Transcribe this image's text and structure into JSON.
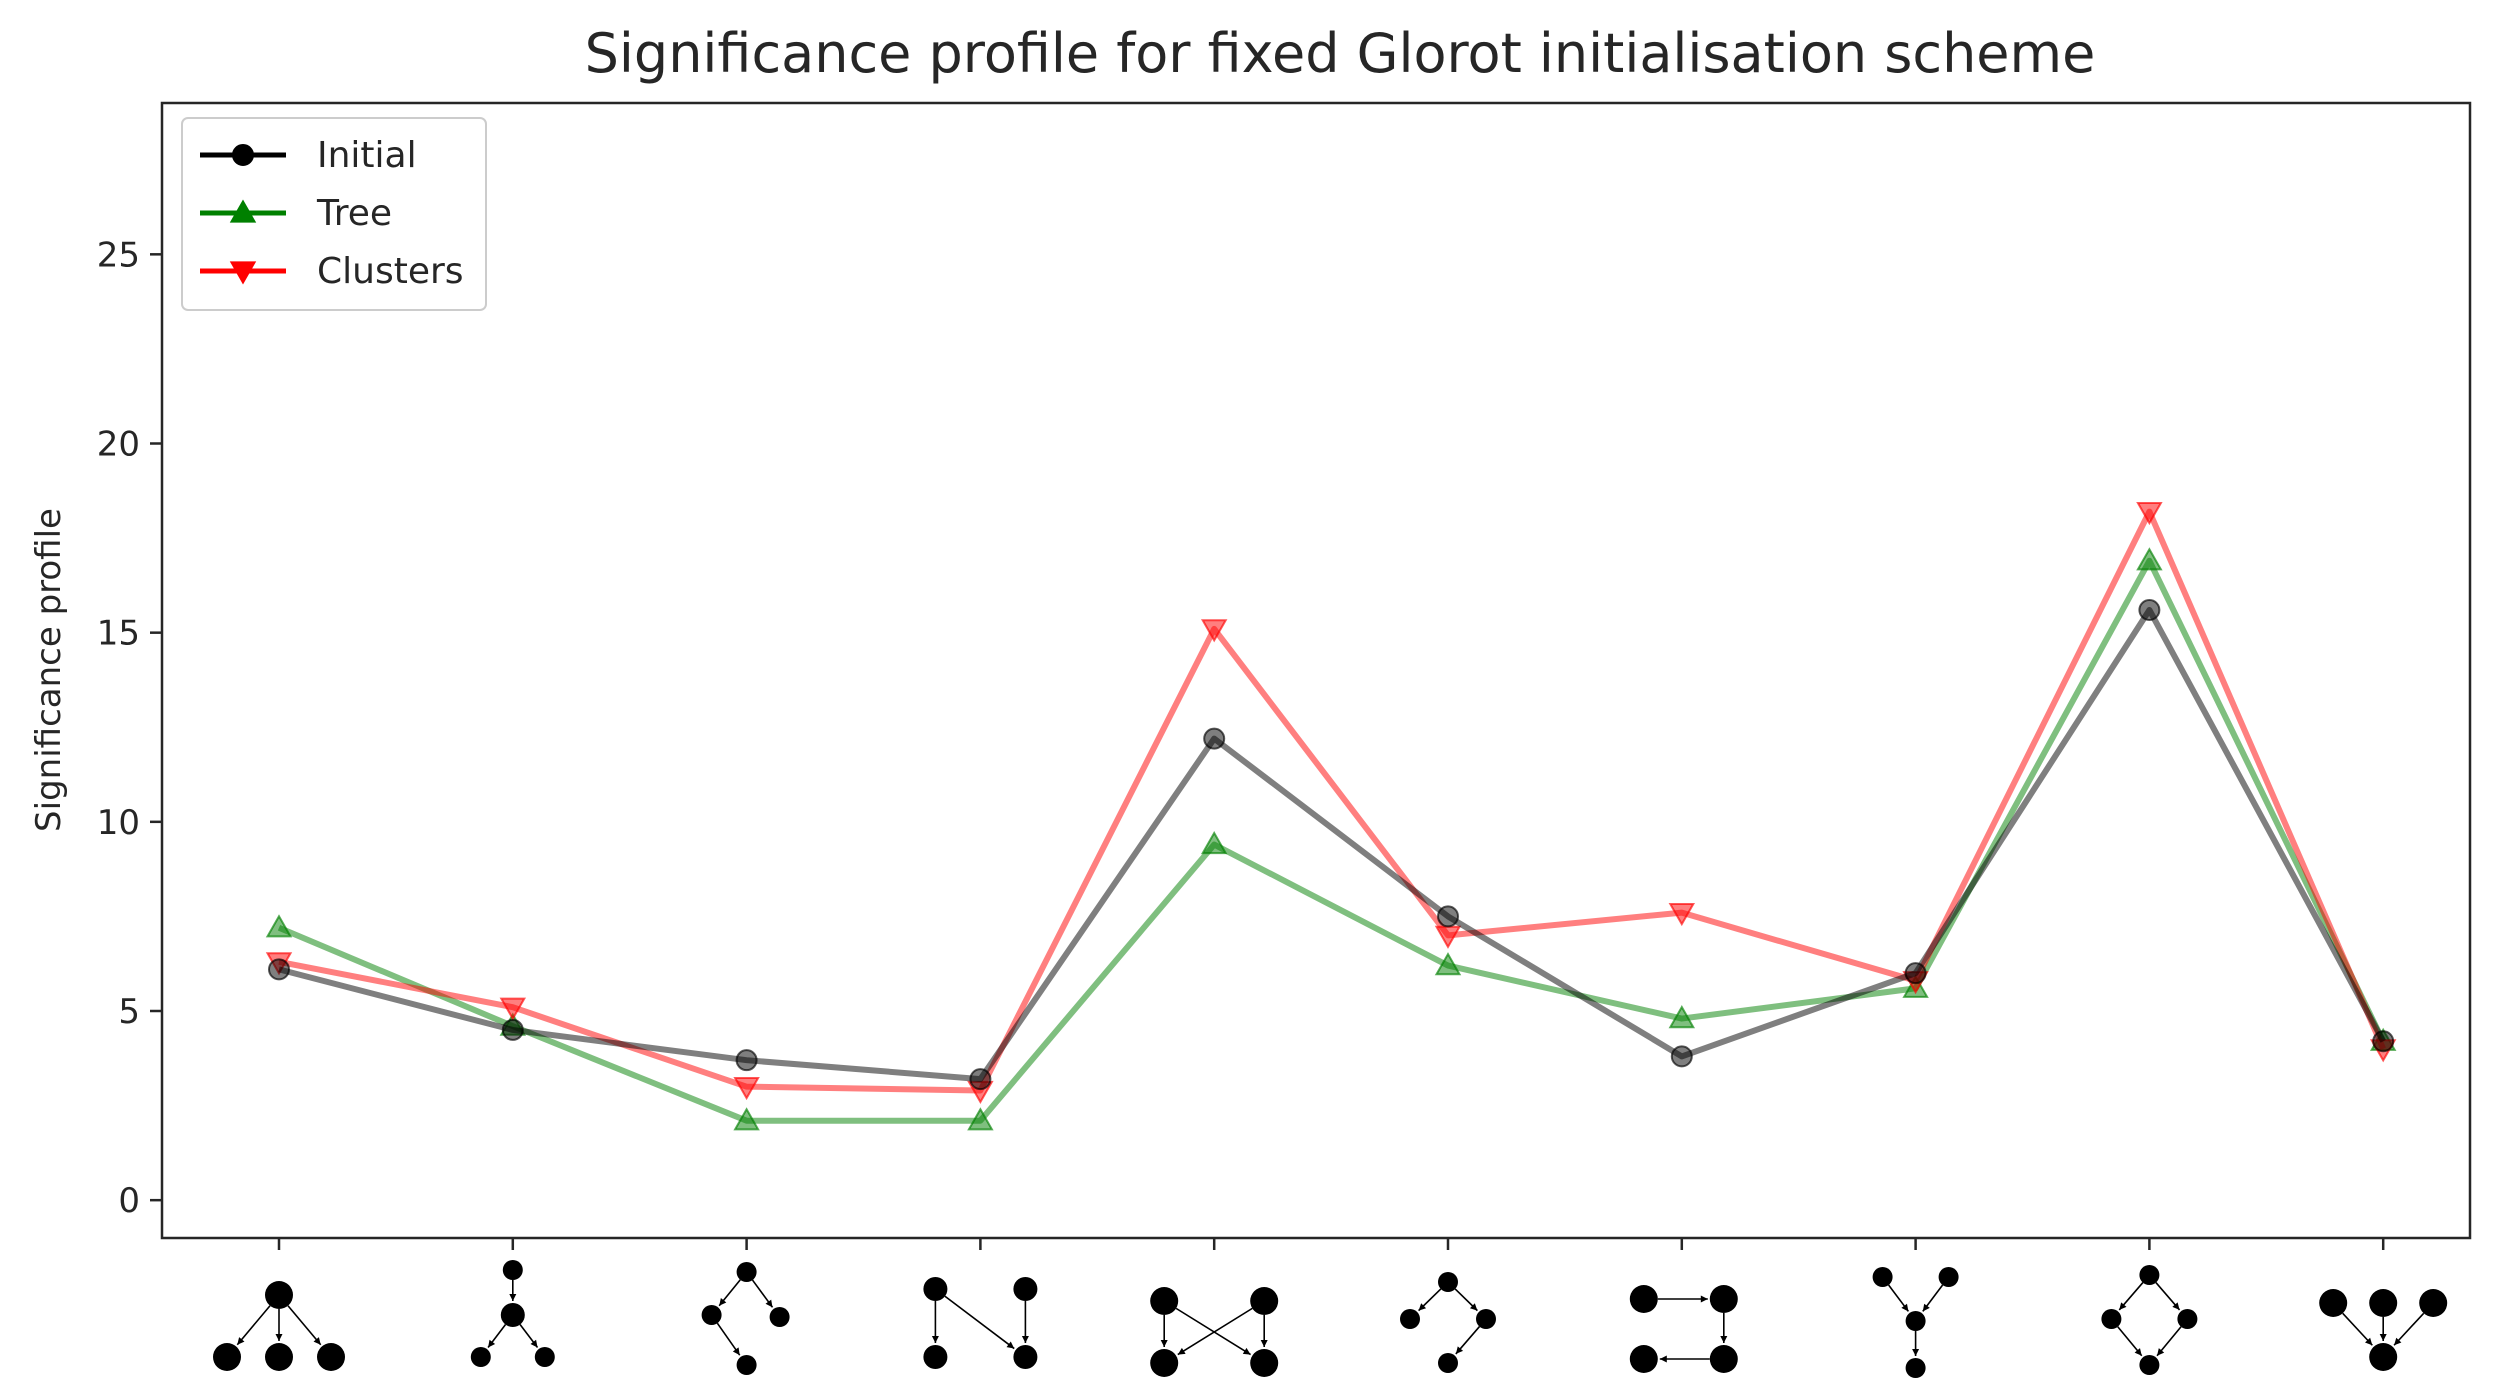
{
  "chart_data": {
    "type": "line",
    "title": "Significance profile for fixed Glorot initialisation scheme",
    "xlabel": "",
    "ylabel": "Significance profile",
    "ylim": [
      -1,
      29
    ],
    "yticks": [
      0,
      5,
      10,
      15,
      20,
      25
    ],
    "grid": false,
    "legend_position": "top-left",
    "categories": [
      "motif-1",
      "motif-2",
      "motif-3",
      "motif-4",
      "motif-5",
      "motif-6",
      "motif-7",
      "motif-8",
      "motif-9",
      "motif-10"
    ],
    "series": [
      {
        "name": "Initial",
        "color": "#000000",
        "marker": "circle",
        "values": [
          6.1,
          4.5,
          3.7,
          3.2,
          12.2,
          7.5,
          3.8,
          6.0,
          15.6,
          4.2
        ]
      },
      {
        "name": "Tree",
        "color": "#008000",
        "marker": "triangle-up",
        "values": [
          7.2,
          4.6,
          2.1,
          2.1,
          9.4,
          6.2,
          4.8,
          5.6,
          16.9,
          4.2
        ]
      },
      {
        "name": "Clusters",
        "color": "#ff0000",
        "marker": "triangle-down",
        "values": [
          6.3,
          5.1,
          3.0,
          2.9,
          15.1,
          7.0,
          7.6,
          5.8,
          18.2,
          4.0
        ]
      }
    ]
  }
}
